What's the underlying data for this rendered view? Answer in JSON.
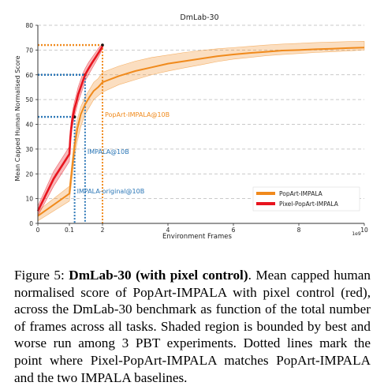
{
  "chart_data": {
    "type": "line",
    "title": "DmLab-30",
    "xlabel": "Environment Frames",
    "ylabel": "Mean Capped Human Normalised Score",
    "x_tick_positions": [
      0,
      0.1,
      2,
      4,
      6,
      8,
      10
    ],
    "x_tick_labels": [
      "0",
      "0.1",
      "2",
      "4",
      "6",
      "8",
      "10"
    ],
    "x_exponent_label": "1e9",
    "xlim": [
      0,
      10
    ],
    "y_ticks": [
      0,
      10,
      20,
      30,
      40,
      50,
      60,
      70,
      80
    ],
    "ylim": [
      0,
      80
    ],
    "grid": true,
    "legend_position": "bottom-right",
    "series": [
      {
        "name": "PopArt-IMPALA",
        "color": "#f08a1c",
        "x": [
          0,
          0.1,
          0.25,
          0.4,
          0.55,
          0.75,
          1.0,
          1.25,
          1.5,
          1.75,
          2.0,
          2.5,
          3.0,
          3.5,
          4.0,
          4.5,
          5.0,
          5.5,
          6.0,
          6.5,
          7.0,
          7.5,
          8.0,
          8.5,
          9.0,
          9.5,
          10.0
        ],
        "y": [
          3,
          12,
          22,
          31,
          38,
          44,
          48,
          51,
          53.5,
          55,
          57,
          59.5,
          61.5,
          63,
          64.5,
          65.5,
          66.5,
          67.5,
          68.2,
          68.8,
          69.3,
          69.8,
          70.0,
          70.3,
          70.5,
          70.8,
          71.0
        ],
        "upper": [
          5,
          15,
          25,
          35,
          42,
          47,
          51,
          54,
          57,
          58.5,
          61,
          63.5,
          65.5,
          67,
          68,
          69,
          69.8,
          70.5,
          71,
          71.5,
          72,
          72.4,
          72.7,
          73,
          73.2,
          73.4,
          73.5
        ],
        "lower": [
          1,
          9,
          18,
          27,
          33,
          39,
          44,
          47,
          50,
          51.5,
          53,
          56,
          58,
          60,
          61.5,
          62.8,
          64,
          65.3,
          66.3,
          67,
          67.7,
          68.2,
          68.6,
          69,
          69.3,
          69.6,
          70
        ]
      },
      {
        "name": "Pixel-PopArt-IMPALA",
        "color": "#e8141e",
        "x": [
          0,
          0.05,
          0.1,
          0.15,
          0.2,
          0.25,
          0.3,
          0.4,
          0.5,
          0.6,
          0.75,
          0.9,
          1.0,
          1.2,
          1.4,
          1.6,
          1.8,
          2.0
        ],
        "y": [
          5,
          18,
          28,
          34,
          38,
          41,
          43,
          46.5,
          49,
          52,
          55,
          58,
          60,
          62.5,
          64.8,
          67,
          69.2,
          71.5
        ],
        "upper": [
          7,
          21,
          31,
          37,
          41,
          44,
          46,
          49.5,
          52,
          55,
          58,
          61,
          62.5,
          65,
          67,
          69,
          71,
          72.5
        ],
        "lower": [
          3,
          15,
          25,
          31,
          35,
          38,
          40,
          43.5,
          46,
          49,
          52,
          55,
          57.5,
          60,
          62.5,
          65,
          67.5,
          70.5
        ]
      }
    ],
    "annotations": [
      {
        "text": "PopArt-IMPALA@10B",
        "color": "#f08a1c",
        "x": 2.0,
        "y": 72,
        "label_y": 44
      },
      {
        "text": "IMPALA@10B",
        "color": "#2a76b6",
        "x": 1.0,
        "y": 60,
        "label_y": 29
      },
      {
        "text": "IMPALA-original@10B",
        "color": "#2a76b6",
        "x": 0.4,
        "y": 43,
        "label_y": 13
      }
    ]
  },
  "caption": {
    "prefix": "Figure 5: ",
    "bold": "DmLab-30 (with pixel control)",
    "rest": ". Mean capped human normalised score of PopArt-IMPALA with pixel control (red), across the DmLab-30 benchmark as function of the total number of frames across all tasks. Shaded region is bounded by best and worse run among 3 PBT experiments. Dotted lines mark the point where Pixel-PopArt-IMPALA matches PopArt-IMPALA and the two IMPALA baselines."
  }
}
